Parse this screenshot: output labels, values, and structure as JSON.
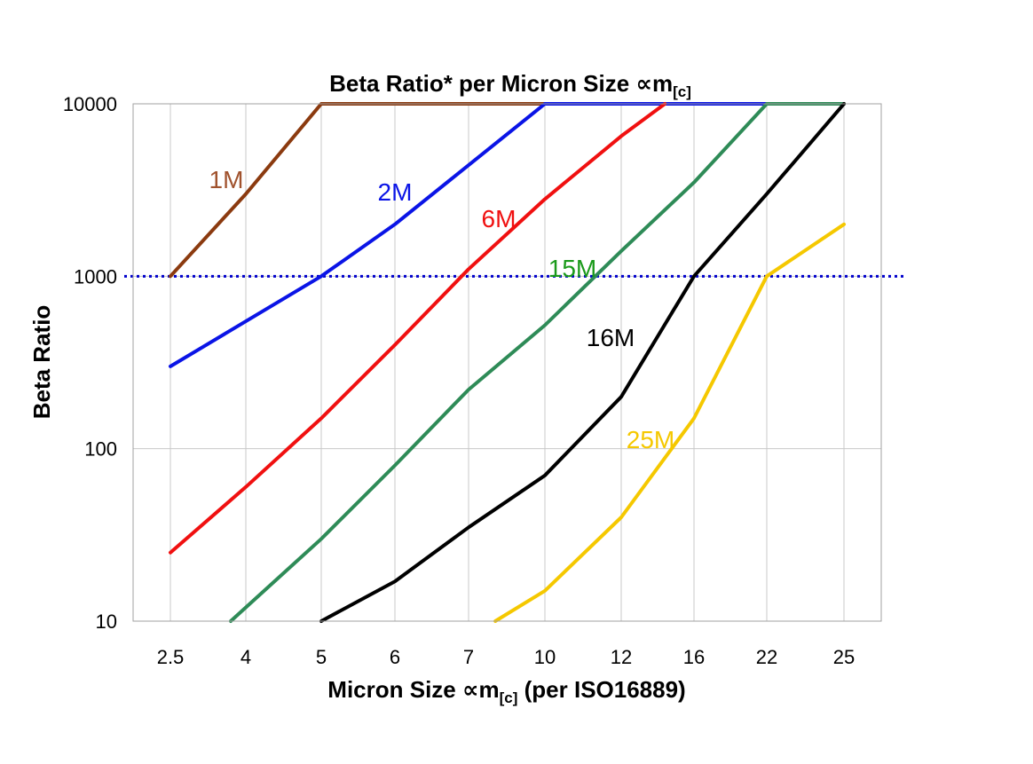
{
  "chart_data": {
    "type": "line",
    "title": "Beta Ratio* per Micron Size ",
    "title_unit": {
      "symbol": "∝m",
      "subscript": "[c]"
    },
    "xlabel": "Micron Size ",
    "xlabel_unit": {
      "symbol": "∝m",
      "subscript": "[c]",
      "suffix": " (per ISO16889)"
    },
    "ylabel": "Beta Ratio",
    "y_scale": "log",
    "ylim": [
      10,
      10000
    ],
    "y_ticks": [
      "10",
      "100",
      "1000",
      "10000"
    ],
    "categories": [
      "2.5",
      "4",
      "5",
      "6",
      "7",
      "10",
      "12",
      "16",
      "22",
      "25"
    ],
    "grid": true,
    "reference_line": {
      "value": 1000,
      "style": "dotted",
      "color": "#0000cc"
    },
    "series": [
      {
        "name": "1M",
        "label": "1M",
        "color": "#8b3a0f",
        "label_color": "#a0522d",
        "points": [
          [
            0,
            1000
          ],
          [
            1,
            3000
          ],
          [
            2,
            10000
          ],
          [
            9,
            10000
          ]
        ]
      },
      {
        "name": "2M",
        "label": "2M",
        "color": "#0a14e6",
        "label_color": "#0a14e6",
        "points": [
          [
            0,
            300
          ],
          [
            2,
            1000
          ],
          [
            3,
            2000
          ],
          [
            5,
            10000
          ],
          [
            8,
            10000
          ]
        ]
      },
      {
        "name": "6M",
        "label": "6M",
        "color": "#f01010",
        "label_color": "#f01010",
        "points": [
          [
            0,
            25
          ],
          [
            1,
            60
          ],
          [
            2,
            150
          ],
          [
            3,
            400
          ],
          [
            4,
            1100
          ],
          [
            5,
            2800
          ],
          [
            6,
            6500
          ],
          [
            6.6,
            10000
          ]
        ]
      },
      {
        "name": "15M",
        "label": "15M",
        "color": "#2e8b57",
        "label_color": "#1a9a1a",
        "points": [
          [
            0.8,
            10
          ],
          [
            2,
            30
          ],
          [
            3,
            80
          ],
          [
            4,
            220
          ],
          [
            5,
            520
          ],
          [
            6,
            1400
          ],
          [
            7,
            3500
          ],
          [
            8,
            10000
          ],
          [
            9,
            10000
          ]
        ]
      },
      {
        "name": "16M",
        "label": "16M",
        "color": "#000000",
        "label_color": "#000000",
        "points": [
          [
            2,
            10
          ],
          [
            3,
            17
          ],
          [
            4,
            35
          ],
          [
            5,
            70
          ],
          [
            6,
            200
          ],
          [
            7,
            1000
          ],
          [
            8,
            3000
          ],
          [
            9,
            10000
          ]
        ]
      },
      {
        "name": "25M",
        "label": "25M",
        "color": "#f5c800",
        "label_color": "#f5c800",
        "points": [
          [
            4.35,
            10
          ],
          [
            5,
            15
          ],
          [
            6,
            40
          ],
          [
            7,
            150
          ],
          [
            8,
            1000
          ],
          [
            9,
            2000
          ]
        ]
      }
    ]
  }
}
